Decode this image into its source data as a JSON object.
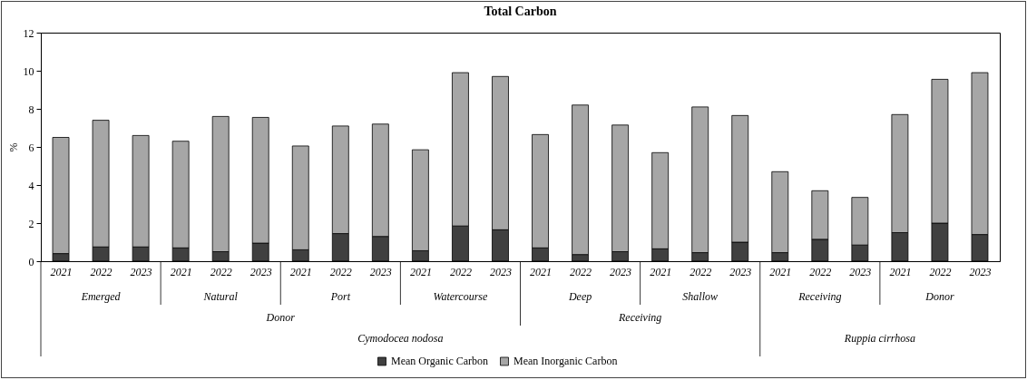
{
  "chart_data": {
    "type": "bar",
    "title": "Total Carbon",
    "ylabel": "%",
    "stacked": true,
    "legend": "bottom",
    "grid": false,
    "categories": [
      "2021",
      "2022",
      "2023",
      "2021",
      "2022",
      "2023",
      "2021",
      "2022",
      "2023",
      "2021",
      "2022",
      "2023",
      "2021",
      "2022",
      "2023",
      "2021",
      "2022",
      "2023",
      "2021",
      "2022",
      "2023",
      "2021",
      "2022",
      "2023"
    ],
    "ylim": [
      0,
      12
    ],
    "yticks": [
      0,
      2,
      4,
      6,
      8,
      10,
      12
    ],
    "series": [
      {
        "name": "Mean Organic Carbon",
        "color": "#404040",
        "values": [
          0.4,
          0.75,
          0.75,
          0.7,
          0.5,
          0.95,
          0.6,
          1.45,
          1.3,
          0.55,
          1.85,
          1.65,
          0.7,
          0.35,
          0.5,
          0.65,
          0.45,
          1.0,
          0.45,
          1.15,
          0.85,
          1.5,
          2.0,
          1.4
        ]
      },
      {
        "name": "Mean Inorganic Carbon",
        "color": "#a6a6a6",
        "values": [
          6.1,
          6.65,
          5.85,
          5.6,
          7.1,
          6.6,
          5.45,
          5.65,
          5.9,
          5.3,
          8.05,
          8.05,
          5.95,
          7.85,
          6.65,
          5.05,
          7.65,
          6.65,
          4.25,
          2.55,
          2.5,
          6.2,
          7.55,
          8.5
        ]
      }
    ],
    "annotations": [
      "Emerged",
      "Natural",
      "Port",
      "Watercourse",
      "Deep",
      "Shallow",
      "Receiving",
      "Donor",
      "Donor",
      "Receiving",
      "Cymodocea nodosa",
      "Ruppia cirrhosa"
    ]
  }
}
